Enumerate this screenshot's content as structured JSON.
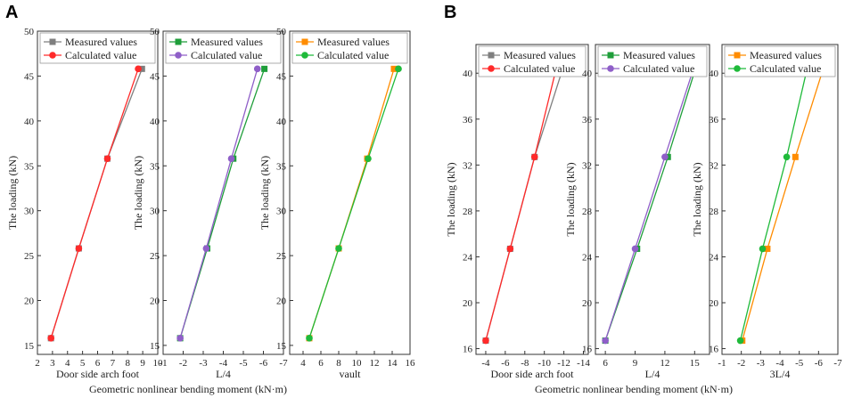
{
  "figure": {
    "panels": [
      "A",
      "B"
    ],
    "xlabel_common": "Geometric nonlinear bending moment (kN·m)"
  },
  "colors": {
    "measured_gray": "#7f7f7f",
    "calc_red": "#ff2a2a",
    "measured_green": "#1f9e3a",
    "calc_purple": "#8f5fc8",
    "measured_orange": "#ff8c00",
    "calc_green": "#1fba3a"
  },
  "chart_data": [
    {
      "type": "line",
      "panel": "A",
      "subplot": 1,
      "ylabel": "The loading (kN)",
      "xlabel": "Door side arch foot",
      "xlim": [
        2,
        10
      ],
      "xticks": [
        "2",
        "3",
        "4",
        "5",
        "6",
        "7",
        "8",
        "9",
        "10"
      ],
      "ylim": [
        14,
        50
      ],
      "yticks": [
        "15",
        "20",
        "25",
        "30",
        "35",
        "40",
        "45",
        "50"
      ],
      "series": [
        {
          "name": "Measured values",
          "color": "#7f7f7f",
          "marker": "square",
          "points": [
            [
              2.9,
              15.8
            ],
            [
              4.75,
              25.8
            ],
            [
              6.65,
              35.8
            ],
            [
              8.95,
              45.8
            ]
          ]
        },
        {
          "name": "Calculated value",
          "color": "#ff2a2a",
          "marker": "circle",
          "points": [
            [
              2.9,
              15.8
            ],
            [
              4.75,
              25.8
            ],
            [
              6.65,
              35.8
            ],
            [
              8.7,
              45.8
            ]
          ]
        }
      ]
    },
    {
      "type": "line",
      "panel": "A",
      "subplot": 2,
      "ylabel": "The loading (kN)",
      "xlabel": "L/4",
      "xlim": [
        -1,
        -7
      ],
      "xticks": [
        "-1",
        "-2",
        "-3",
        "-4",
        "-5",
        "-6",
        "-7"
      ],
      "ylim": [
        14,
        50
      ],
      "yticks": [
        "15",
        "20",
        "25",
        "30",
        "35",
        "40",
        "45",
        "50"
      ],
      "series": [
        {
          "name": "Measured values",
          "color": "#1f9e3a",
          "marker": "square",
          "points": [
            [
              -1.85,
              15.8
            ],
            [
              -3.2,
              25.8
            ],
            [
              -4.5,
              35.8
            ],
            [
              -6.05,
              45.8
            ]
          ]
        },
        {
          "name": "Calculated value",
          "color": "#8f5fc8",
          "marker": "circle",
          "points": [
            [
              -1.85,
              15.8
            ],
            [
              -3.15,
              25.8
            ],
            [
              -4.4,
              35.8
            ],
            [
              -5.7,
              45.8
            ]
          ]
        }
      ]
    },
    {
      "type": "line",
      "panel": "A",
      "subplot": 3,
      "ylabel": "The loading (kN)",
      "xlabel": "vault",
      "xlim": [
        2.5,
        16
      ],
      "xticks": [
        "4",
        "6",
        "8",
        "10",
        "12",
        "14",
        "16"
      ],
      "ylim": [
        14,
        50
      ],
      "yticks": [
        "15",
        "20",
        "25",
        "30",
        "35",
        "40",
        "45",
        "50"
      ],
      "series": [
        {
          "name": "Measured values",
          "color": "#ff8c00",
          "marker": "square",
          "points": [
            [
              4.7,
              15.8
            ],
            [
              8.0,
              25.8
            ],
            [
              11.2,
              35.8
            ],
            [
              14.2,
              45.8
            ]
          ]
        },
        {
          "name": "Calculated value",
          "color": "#1fba3a",
          "marker": "circle",
          "points": [
            [
              4.7,
              15.8
            ],
            [
              8.0,
              25.8
            ],
            [
              11.3,
              35.8
            ],
            [
              14.7,
              45.8
            ]
          ]
        }
      ]
    },
    {
      "type": "line",
      "panel": "B",
      "subplot": 1,
      "ylabel": "The loading (kN)",
      "xlabel": "Door side arch foot",
      "xlim": [
        -3,
        -14.5
      ],
      "xticks": [
        "-4",
        "-6",
        "-8",
        "-10",
        "-12",
        "-14"
      ],
      "ylim": [
        15.5,
        42.5
      ],
      "yticks": [
        "16",
        "20",
        "24",
        "28",
        "32",
        "36",
        "40"
      ],
      "series": [
        {
          "name": "Measured values",
          "color": "#7f7f7f",
          "marker": "square",
          "points": [
            [
              -4.0,
              16.7
            ],
            [
              -6.5,
              24.7
            ],
            [
              -9.0,
              32.7
            ],
            [
              -12.0,
              40.7
            ]
          ]
        },
        {
          "name": "Calculated value",
          "color": "#ff2a2a",
          "marker": "circle",
          "points": [
            [
              -4.0,
              16.7
            ],
            [
              -6.5,
              24.7
            ],
            [
              -9.0,
              32.7
            ],
            [
              -11.3,
              40.7
            ]
          ]
        }
      ]
    },
    {
      "type": "line",
      "panel": "B",
      "subplot": 2,
      "ylabel": "The loading (kN)",
      "xlabel": "L/4",
      "xlim": [
        5,
        16.5
      ],
      "xticks": [
        "6",
        "9",
        "12",
        "15"
      ],
      "ylim": [
        15.5,
        42.5
      ],
      "yticks": [
        "16",
        "20",
        "24",
        "28",
        "32",
        "36",
        "40"
      ],
      "series": [
        {
          "name": "Measured values",
          "color": "#1f9e3a",
          "marker": "square",
          "points": [
            [
              6.0,
              16.7
            ],
            [
              9.2,
              24.7
            ],
            [
              12.3,
              32.7
            ],
            [
              15.2,
              40.7
            ]
          ]
        },
        {
          "name": "Calculated value",
          "color": "#8f5fc8",
          "marker": "circle",
          "points": [
            [
              6.0,
              16.7
            ],
            [
              9.0,
              24.7
            ],
            [
              12.0,
              32.7
            ],
            [
              15.0,
              40.7
            ]
          ]
        }
      ]
    },
    {
      "type": "line",
      "panel": "B",
      "subplot": 3,
      "ylabel": "The loading (kN)",
      "xlabel": "3L/4",
      "xlim": [
        -1,
        -7
      ],
      "xticks": [
        "-1",
        "-2",
        "-3",
        "-4",
        "-5",
        "-6",
        "-7"
      ],
      "ylim": [
        15.5,
        42.5
      ],
      "yticks": [
        "16",
        "20",
        "24",
        "28",
        "32",
        "36",
        "40"
      ],
      "series": [
        {
          "name": "Measured values",
          "color": "#ff8c00",
          "marker": "square",
          "points": [
            [
              -2.05,
              16.7
            ],
            [
              -3.35,
              24.7
            ],
            [
              -4.8,
              32.7
            ],
            [
              -6.3,
              40.7
            ]
          ]
        },
        {
          "name": "Calculated value",
          "color": "#1fba3a",
          "marker": "circle",
          "points": [
            [
              -1.95,
              16.7
            ],
            [
              -3.1,
              24.7
            ],
            [
              -4.35,
              32.7
            ],
            [
              -5.45,
              40.7
            ]
          ]
        }
      ]
    }
  ]
}
